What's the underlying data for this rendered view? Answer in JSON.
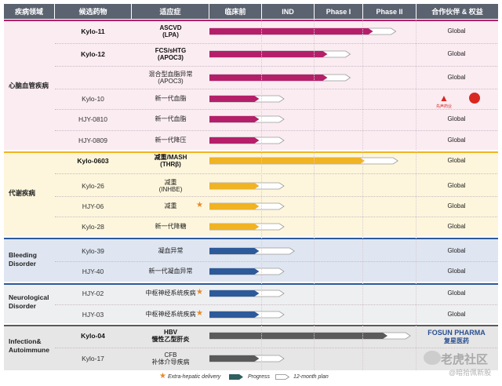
{
  "header": {
    "area": "疾病领域",
    "candidate": "候选药物",
    "indication": "适应症",
    "preclinical": "临床前",
    "ind": "IND",
    "phase1": "Phase I",
    "phase2": "Phase II",
    "partner": "合作伙伴 & 权益"
  },
  "colors": {
    "header_bg": "#5b6270",
    "cardio": "#b51f6a",
    "metabolic": "#f0b323",
    "bleeding": "#2d5a9a",
    "neuro": "#2d5a9a",
    "infection": "#5a5a5a",
    "star": "#e8892a"
  },
  "groups": [
    {
      "area": "心脑血管疾病",
      "color": "#b51f6a",
      "bg": "#fbecf2",
      "rows": [
        {
          "candidate": "Kylo-11",
          "bold": true,
          "indication": [
            "ASCVD",
            "(LPA)"
          ],
          "progress": 0.79,
          "plan": 0.9,
          "partner": "Global"
        },
        {
          "candidate": "Kylo-12",
          "bold": true,
          "indication": [
            "FCS/sHTG",
            "(APOC3)"
          ],
          "progress": 0.57,
          "plan": 0.68,
          "partner": "Global"
        },
        {
          "candidate": "",
          "bold": false,
          "indication": [
            "混合型血脂异常",
            "(APOC3)"
          ],
          "progress": 0.57,
          "plan": 0.68,
          "partner": "Global"
        },
        {
          "candidate": "Kylo-10",
          "bold": false,
          "indication": [
            "新一代血脂"
          ],
          "progress": 0.24,
          "plan": 0.36,
          "partner": "先声药业",
          "partner_logo": true
        },
        {
          "candidate": "HJY-0810",
          "bold": false,
          "indication": [
            "新一代血脂"
          ],
          "progress": 0.24,
          "plan": 0.36,
          "partner": "Global"
        },
        {
          "candidate": "HJY-0809",
          "bold": false,
          "indication": [
            "新一代降压"
          ],
          "progress": 0.24,
          "plan": 0.36,
          "partner": "Global"
        }
      ]
    },
    {
      "area": "代谢疾病",
      "color": "#f0b323",
      "bg": "#fdf6dc",
      "rows": [
        {
          "candidate": "Kylo-0603",
          "bold": true,
          "indication": [
            "减重/MASH",
            "(THRβ)"
          ],
          "progress": 0.75,
          "plan": 0.91,
          "partner": "Global"
        },
        {
          "candidate": "Kylo-26",
          "bold": false,
          "indication": [
            "减重",
            "(INHBE)"
          ],
          "progress": 0.24,
          "plan": 0.36,
          "partner": "Global"
        },
        {
          "candidate": "HJY-06",
          "bold": false,
          "indication": [
            "减重"
          ],
          "star": true,
          "progress": 0.24,
          "plan": 0.36,
          "partner": "Global"
        },
        {
          "candidate": "Kylo-28",
          "bold": false,
          "indication": [
            "新一代降糖"
          ],
          "progress": 0.24,
          "plan": 0.36,
          "partner": "Global"
        }
      ]
    },
    {
      "area": "Bleeding Disorder",
      "color": "#2d5a9a",
      "bg": "#dfe6f1",
      "rows": [
        {
          "candidate": "Kylo-39",
          "bold": false,
          "indication": [
            "凝血异常"
          ],
          "progress": 0.24,
          "plan": 0.41,
          "partner": "Global"
        },
        {
          "candidate": "HJY-40",
          "bold": false,
          "indication": [
            "新一代凝血异常"
          ],
          "progress": 0.24,
          "plan": 0.36,
          "partner": "Global"
        }
      ]
    },
    {
      "area": "Neurological Disorder",
      "color": "#2d5a9a",
      "bg": "#eeeff1",
      "rows": [
        {
          "candidate": "HJY-02",
          "bold": false,
          "indication": [
            "中枢神经系统疾病"
          ],
          "star": true,
          "progress": 0.24,
          "plan": 0.36,
          "partner": "Global"
        },
        {
          "candidate": "HJY-03",
          "bold": false,
          "indication": [
            "中枢神经系统疾病"
          ],
          "star": true,
          "progress": 0.24,
          "plan": 0.36,
          "partner": "Global"
        }
      ]
    },
    {
      "area": "Infection& Autoimmune",
      "color": "#5a5a5a",
      "bg": "#e6e6e6",
      "rows": [
        {
          "candidate": "Kylo-04",
          "bold": true,
          "indication": [
            "HBV",
            "慢性乙型肝炎"
          ],
          "progress": 0.86,
          "plan": 0.97,
          "partner": "FOSUN PHARMA",
          "partner_sub": "复星医药",
          "partner_logo": true
        },
        {
          "candidate": "Kylo-17",
          "bold": false,
          "indication": [
            "CFB",
            "补体介导疾病"
          ],
          "progress": 0.24,
          "plan": 0.36,
          "partner": ""
        }
      ]
    }
  ],
  "legend": {
    "star_label": "Extra-hepatic delivery",
    "progress_label": "Progress",
    "plan_label": "12-month plan"
  },
  "watermark": {
    "line1": "老虎社区",
    "line2": "@暗拾佩新股"
  }
}
